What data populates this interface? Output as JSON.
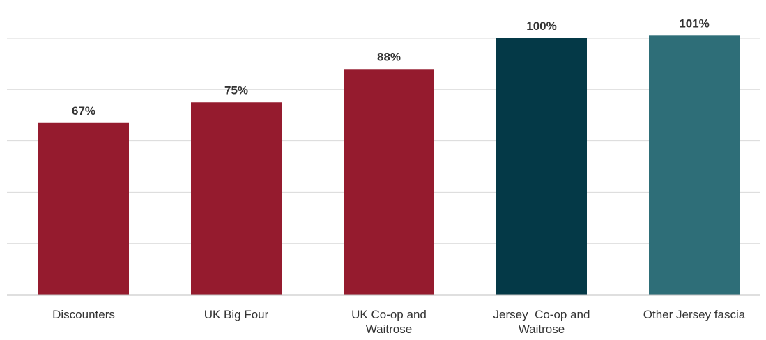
{
  "chart_data": {
    "type": "bar",
    "categories": [
      [
        "Discounters"
      ],
      [
        "UK Big Four"
      ],
      [
        "UK Co-op and",
        "Waitrose"
      ],
      [
        "Jersey  Co-op and",
        "Waitrose"
      ],
      [
        "Other Jersey fascia"
      ]
    ],
    "values": [
      67,
      75,
      88,
      100,
      101
    ],
    "data_labels": [
      "67%",
      "75%",
      "88%",
      "100%",
      "101%"
    ],
    "bar_colors": [
      "#951b2e",
      "#951b2e",
      "#951b2e",
      "#043947",
      "#2e6e78"
    ],
    "gridline_color": "#d9d9d9",
    "axis_color": "#bfbfbf",
    "text_color": "#333333",
    "ylim": [
      0,
      120
    ],
    "gridlines": [
      20,
      40,
      60,
      80,
      100
    ],
    "grid": true,
    "legend": "none",
    "title": "",
    "xlabel": "",
    "ylabel": ""
  }
}
